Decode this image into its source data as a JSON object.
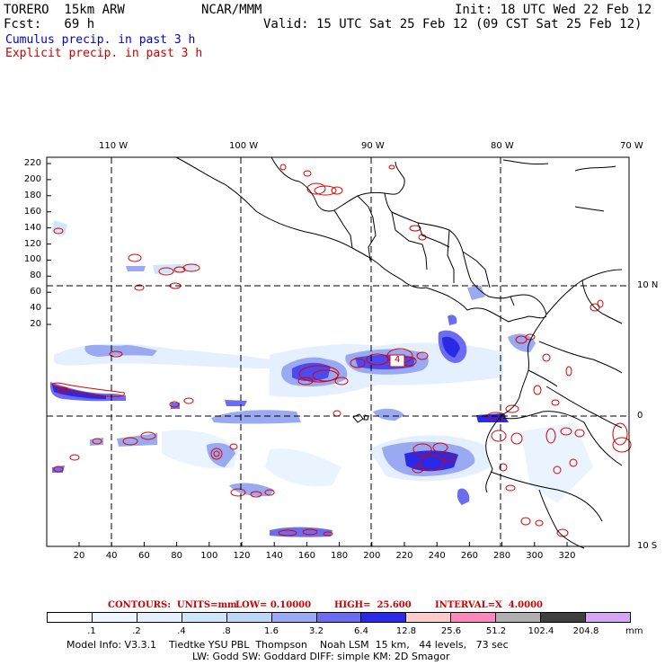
{
  "header": {
    "model": "TORERO  15km ARW",
    "org": "NCAR/MMM",
    "init": "Init: 18 UTC Wed 22 Feb 12",
    "fcst": "Fcst:   69 h",
    "valid": "Valid: 15 UTC Sat 25 Feb 12 (09 CST Sat 25 Feb 12)"
  },
  "legend": {
    "cumulus": "Cumulus precip. in past 3 h",
    "explicit": "Explicit precip. in past 3 h",
    "cumulus_color": "#0000cc",
    "explicit_color": "#cc0000"
  },
  "map": {
    "lon_labels": [
      "110 W",
      "100 W",
      "90 W",
      "80 W",
      "70 W"
    ],
    "lat_labels": [
      "10 N",
      "0",
      "10 S"
    ],
    "y_ticks": [
      "220",
      "200",
      "180",
      "160",
      "140",
      "120",
      "100",
      "80",
      "60",
      "40",
      "20"
    ],
    "x_ticks": [
      "20",
      "40",
      "60",
      "80",
      "100",
      "120",
      "140",
      "160",
      "180",
      "200",
      "220",
      "240",
      "260",
      "280",
      "300",
      "320"
    ],
    "contour_box_label": "4"
  },
  "contours": {
    "units": "CONTOURS:  UNITS=mm",
    "low": "LOW= 0.10000",
    "high": "HIGH=  25.600",
    "interval": "INTERVAL=X  4.0000"
  },
  "colorbar": {
    "labels": [
      ".1",
      ".2",
      ".4",
      ".8",
      "1.6",
      "3.2",
      "6.4",
      "12.8",
      "25.6",
      "51.2",
      "102.4",
      "204.8"
    ],
    "unit": "mm",
    "colors": [
      "#ffffff",
      "#eef6ff",
      "#e2f0ff",
      "#cfe6fa",
      "#bcd6f7",
      "#9aaaf2",
      "#6c6cf0",
      "#2a2ae6",
      "#ffcccc",
      "#ff88bb",
      "#b0b0b0",
      "#404040",
      "#d6a6f6"
    ]
  },
  "footer": {
    "line1": "Model Info: V3.3.1    Tiedtke YSU PBL  Thompson    Noah LSM  15 km,   44 levels,   73 sec",
    "line2": "LW: Godd SW: Goddard DIFF: simple KM: 2D Smagor"
  }
}
